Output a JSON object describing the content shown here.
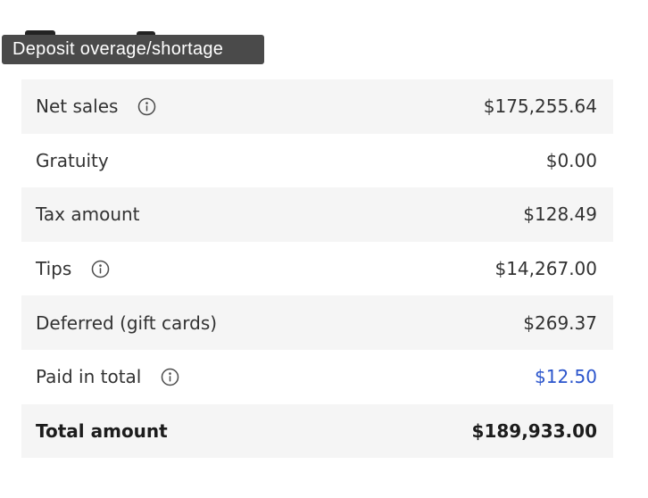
{
  "tooltip": {
    "text": "Deposit overage/shortage"
  },
  "summary_table": {
    "rows": [
      {
        "label": "Net sales",
        "value": "$175,255.64",
        "has_info_icon": true,
        "value_is_link": false,
        "emphasis": false
      },
      {
        "label": "Gratuity",
        "value": "$0.00",
        "has_info_icon": false,
        "value_is_link": false,
        "emphasis": false
      },
      {
        "label": "Tax amount",
        "value": "$128.49",
        "has_info_icon": false,
        "value_is_link": false,
        "emphasis": false
      },
      {
        "label": "Tips",
        "value": "$14,267.00",
        "has_info_icon": true,
        "value_is_link": false,
        "emphasis": false
      },
      {
        "label": "Deferred (gift cards)",
        "value": "$269.37",
        "has_info_icon": false,
        "value_is_link": false,
        "emphasis": false
      },
      {
        "label": "Paid in total",
        "value": "$12.50",
        "has_info_icon": true,
        "value_is_link": true,
        "emphasis": false
      },
      {
        "label": "Total amount",
        "value": "$189,933.00",
        "has_info_icon": false,
        "value_is_link": false,
        "emphasis": true
      }
    ]
  },
  "icons": {
    "info": "info-icon"
  },
  "colors": {
    "tooltip_bg": "#4a4a4a",
    "tooltip_text": "#ffffff",
    "row_stripe_bg": "#f5f5f5",
    "text": "#323232",
    "emphasis_text": "#1c1c1c",
    "link_blue": "#2b55cc",
    "info_icon": "#4d4d4d"
  }
}
